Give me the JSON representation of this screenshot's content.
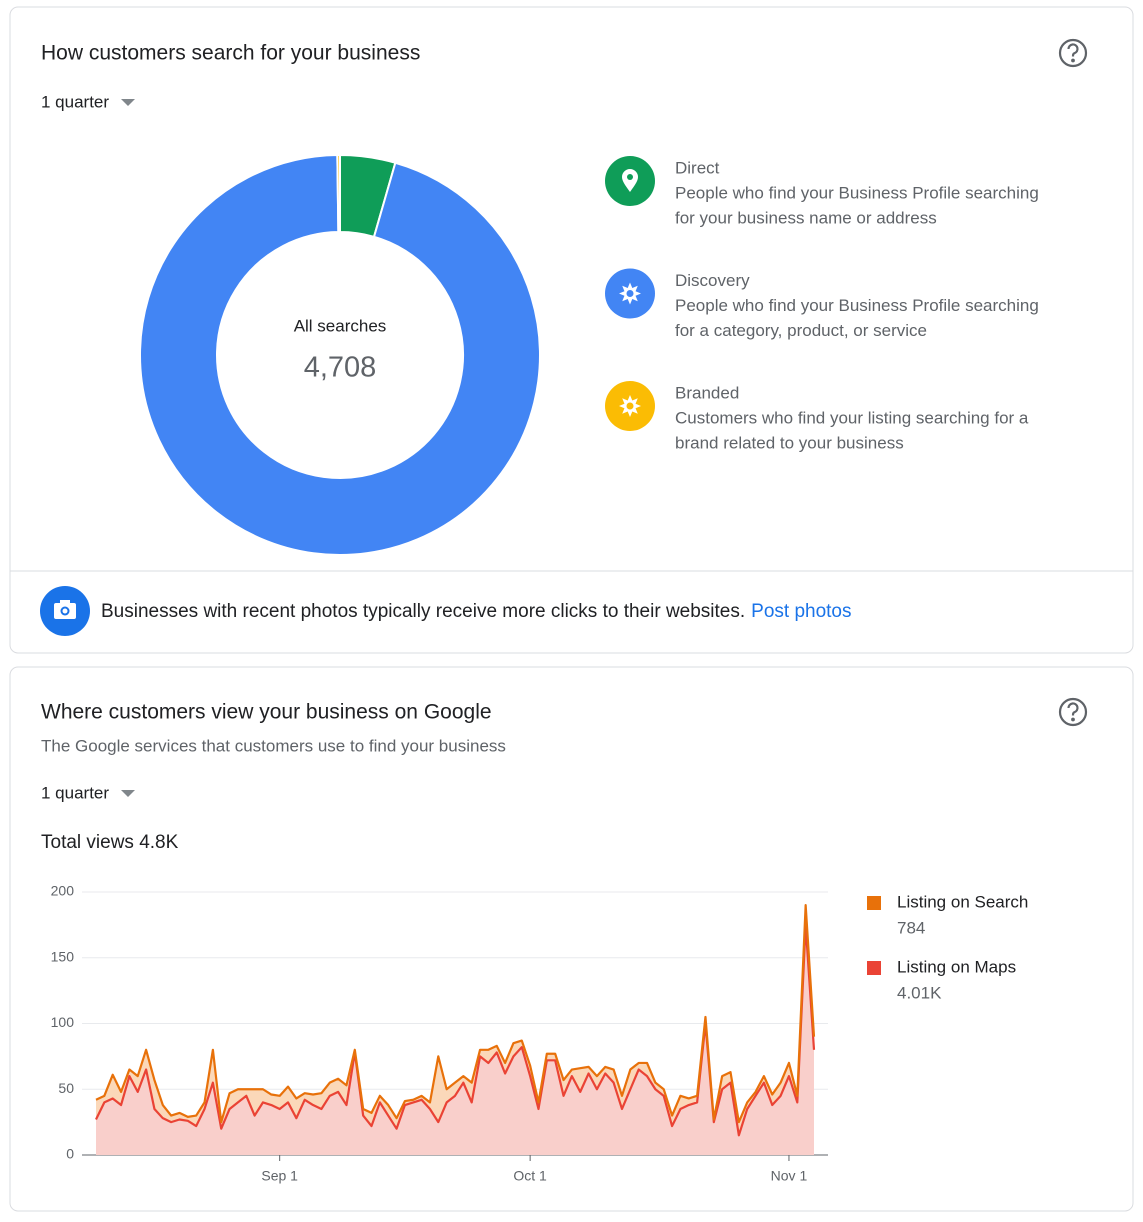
{
  "card1": {
    "title": "How customers search for your business",
    "period": "1 quarter",
    "tip": "Businesses with recent photos typically receive more clicks to their websites.",
    "tip_link": "Post photos"
  },
  "card2": {
    "title": "Where customers view your business on Google",
    "subtitle": "The Google services that customers use to find your business",
    "period": "1 quarter",
    "total": "Total views 4.8K"
  },
  "chart_data": [
    {
      "type": "donut",
      "center_title": "All searches",
      "center_value": "4,708",
      "categories": [
        "Direct",
        "Discovery",
        "Branded"
      ],
      "descriptions": [
        [
          "People who find your Business Profile searching",
          "for your business name or address"
        ],
        [
          "People who find your Business Profile searching",
          "for a category, product, or service"
        ],
        [
          "Customers who find your listing searching for a",
          "brand related to your business"
        ]
      ],
      "values": [
        210,
        4488,
        10
      ],
      "colors": [
        "#0f9d58",
        "#4285f4",
        "#fbbc04"
      ]
    },
    {
      "type": "area",
      "stacked": true,
      "categories": [
        null,
        null,
        null,
        null,
        null,
        null,
        null,
        null,
        null,
        null,
        null,
        null,
        null,
        null,
        null,
        null,
        null,
        null,
        null,
        null,
        null,
        null,
        "Sep 1",
        null,
        null,
        null,
        null,
        null,
        null,
        null,
        null,
        null,
        null,
        null,
        null,
        null,
        null,
        null,
        null,
        null,
        null,
        null,
        null,
        null,
        null,
        null,
        null,
        null,
        null,
        null,
        null,
        null,
        "Oct 1",
        null,
        null,
        null,
        null,
        null,
        null,
        null,
        null,
        null,
        null,
        null,
        null,
        null,
        null,
        null,
        null,
        null,
        null,
        null,
        null,
        null,
        null,
        null,
        null,
        null,
        null,
        null,
        null,
        null,
        null,
        "Nov 1",
        null,
        null,
        null
      ],
      "series": [
        {
          "name": "Listing on Search",
          "color": "#e8710a",
          "total": 784,
          "values": [
            15,
            5,
            18,
            10,
            5,
            12,
            15,
            22,
            10,
            5,
            5,
            3,
            8,
            5,
            25,
            5,
            12,
            10,
            5,
            20,
            10,
            8,
            10,
            12,
            15,
            5,
            8,
            12,
            10,
            10,
            15,
            2,
            5,
            10,
            5,
            8,
            8,
            3,
            2,
            3,
            5,
            50,
            10,
            10,
            5,
            15,
            5,
            10,
            5,
            8,
            10,
            5,
            8,
            5,
            5,
            5,
            12,
            5,
            18,
            5,
            10,
            5,
            10,
            10,
            15,
            5,
            10,
            5,
            5,
            8,
            10,
            5,
            5,
            5,
            2,
            10,
            8,
            10,
            5,
            3,
            5,
            8,
            10,
            10,
            5,
            15,
            10
          ]
        },
        {
          "name": "Listing on Maps",
          "color": "#ea4335",
          "total": {
            "value": 4010,
            "label": "4.01K"
          },
          "values": [
            27,
            40,
            43,
            38,
            60,
            48,
            65,
            35,
            28,
            25,
            27,
            26,
            22,
            35,
            55,
            20,
            35,
            40,
            45,
            30,
            40,
            38,
            35,
            40,
            28,
            42,
            38,
            35,
            45,
            48,
            38,
            78,
            30,
            22,
            40,
            30,
            20,
            38,
            40,
            42,
            35,
            25,
            40,
            45,
            55,
            40,
            75,
            70,
            78,
            62,
            75,
            82,
            60,
            35,
            72,
            72,
            45,
            60,
            48,
            62,
            50,
            62,
            55,
            35,
            50,
            65,
            60,
            50,
            45,
            22,
            35,
            38,
            40,
            100,
            25,
            50,
            55,
            15,
            35,
            45,
            55,
            38,
            45,
            60,
            40,
            175,
            80
          ]
        }
      ],
      "ylim": [
        0,
        200
      ],
      "yticks": [
        0,
        50,
        100,
        150,
        200
      ],
      "grid": true
    }
  ]
}
